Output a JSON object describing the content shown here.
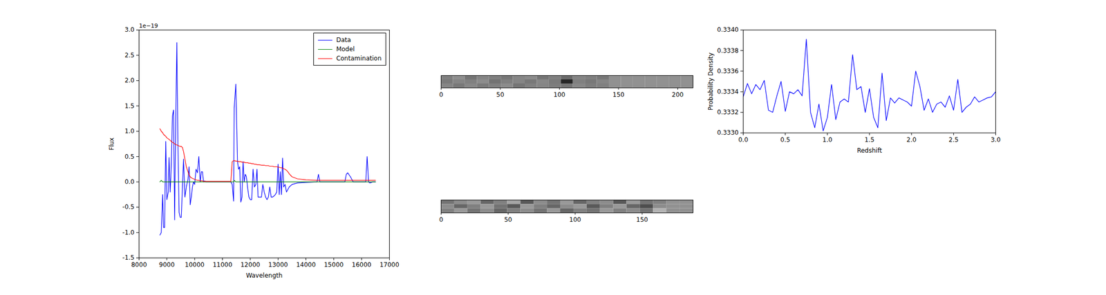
{
  "chart_data": [
    {
      "type": "line",
      "x_label": "Wavelength",
      "y_label": "Flux",
      "annotations": [
        "1e−19"
      ],
      "legend": "upper right",
      "grid": false,
      "xlim": [
        8000,
        17000
      ],
      "xticks": [
        8000,
        9000,
        10000,
        11000,
        12000,
        13000,
        14000,
        15000,
        16000,
        17000
      ],
      "ylim": [
        -1.5,
        3.0
      ],
      "yticks": [
        -1.5,
        {
          "value": -1,
          "label": "-1.0"
        },
        -0.5,
        {
          "value": 0,
          "label": "0.0"
        },
        0.5,
        {
          "value": 1,
          "label": "1.0"
        },
        1.5,
        {
          "value": 2,
          "label": "2.0"
        },
        2.5,
        {
          "value": 3,
          "label": "3.0"
        }
      ],
      "x": [
        8750,
        8800,
        8850,
        8880,
        8920,
        8960,
        9000,
        9050,
        9080,
        9120,
        9160,
        9200,
        9240,
        9280,
        9320,
        9360,
        9400,
        9440,
        9480,
        9520,
        9560,
        9600,
        9650,
        9700,
        9760,
        9800,
        9840,
        9880,
        9920,
        9960,
        10000,
        10050,
        10100,
        10150,
        10200,
        10240,
        10280,
        10320,
        10360,
        10400,
        10500,
        11000,
        11300,
        11350,
        11400,
        11420,
        11480,
        11540,
        11580,
        11620,
        11660,
        11700,
        11740,
        11780,
        11820,
        11860,
        11900,
        11950,
        12000,
        12050,
        12100,
        12150,
        12200,
        12240,
        12280,
        12320,
        12400,
        12450,
        12500,
        12550,
        12600,
        12650,
        12700,
        12750,
        12800,
        12850,
        12900,
        12950,
        13000,
        13040,
        13080,
        13120,
        13160,
        13200,
        13250,
        13300,
        13350,
        13400,
        13500,
        13700,
        14000,
        14400,
        14450,
        14500,
        15000,
        15400,
        15450,
        15500,
        15600,
        15700,
        16000,
        16150,
        16200,
        16250,
        16300,
        16400,
        16500
      ],
      "series": [
        {
          "name": "Data",
          "color": "#0000ff",
          "values": [
            -1.05,
            -1.0,
            -0.25,
            -0.9,
            -0.9,
            0.8,
            -0.35,
            -0.2,
            0.48,
            -0.2,
            0.3,
            1.3,
            1.42,
            -0.75,
            1.2,
            2.75,
            0.7,
            -0.6,
            -0.7,
            -0.7,
            -0.1,
            0.45,
            -0.3,
            -0.1,
            0.05,
            0.3,
            -0.45,
            -0.3,
            -0.1,
            0.0,
            -0.05,
            0.25,
            0.18,
            0.5,
            0.0,
            0.2,
            0.2,
            0.0,
            0.02,
            0.0,
            0.0,
            0.0,
            0.0,
            -0.05,
            -0.38,
            1.45,
            1.93,
            0.4,
            0.25,
            0.3,
            -0.4,
            -0.3,
            0.4,
            0.0,
            0.15,
            0.1,
            -0.1,
            -0.3,
            -0.35,
            -0.35,
            0.25,
            -0.1,
            -0.05,
            0.25,
            -0.3,
            -0.3,
            -0.3,
            -0.05,
            -0.2,
            -0.3,
            -0.35,
            -0.3,
            -0.1,
            -0.3,
            -0.3,
            -0.28,
            -0.25,
            -0.2,
            0.35,
            -0.25,
            0.2,
            -0.25,
            0.47,
            -0.1,
            -0.05,
            -0.2,
            -0.15,
            -0.1,
            -0.05,
            -0.02,
            -0.01,
            0.0,
            0.15,
            0.0,
            0.0,
            0.0,
            0.15,
            0.18,
            0.1,
            0.0,
            0.0,
            0.0,
            0.5,
            0.0,
            -0.02,
            0.0,
            0.0
          ]
        },
        {
          "name": "Model",
          "color": "#008000",
          "values": [
            0.0,
            0.03,
            0,
            0,
            0,
            0,
            0,
            0,
            0,
            0,
            0,
            0,
            0,
            0,
            0,
            0,
            0,
            0,
            0,
            0,
            0,
            0,
            0,
            0,
            0,
            0,
            0,
            0,
            0,
            0,
            0,
            0,
            0,
            0,
            0,
            0,
            0,
            0,
            0,
            0,
            0,
            0,
            0,
            0,
            0,
            0.03,
            0,
            0,
            0,
            0,
            0,
            0,
            0,
            0,
            0,
            0,
            0,
            0,
            0,
            0,
            0,
            0,
            0,
            0,
            0,
            0,
            0,
            0,
            0,
            0,
            0,
            0,
            0,
            0,
            0,
            0,
            0,
            0,
            0,
            0,
            0,
            0,
            0,
            0,
            0,
            0,
            0,
            0,
            0,
            0,
            0,
            0,
            0,
            0,
            0,
            0,
            0,
            0,
            0,
            0,
            0,
            0,
            0,
            0,
            0,
            0,
            0
          ]
        },
        {
          "name": "Contamination",
          "color": "#ff0000",
          "values": [
            1.05,
            1.0,
            0.97,
            0.94,
            0.92,
            0.9,
            0.87,
            0.85,
            0.84,
            0.82,
            0.8,
            0.78,
            0.77,
            0.75,
            0.74,
            0.73,
            0.72,
            0.71,
            0.7,
            0.7,
            0.68,
            0.6,
            0.45,
            0.3,
            0.2,
            0.14,
            0.1,
            0.08,
            0.07,
            0.06,
            0.05,
            0.04,
            0.03,
            0.03,
            0.02,
            0.02,
            0.02,
            0.01,
            0.01,
            0.01,
            0.01,
            0.01,
            0.01,
            0.4,
            0.42,
            0.42,
            0.41,
            0.41,
            0.4,
            0.4,
            0.4,
            0.39,
            0.39,
            0.39,
            0.38,
            0.38,
            0.38,
            0.37,
            0.37,
            0.36,
            0.36,
            0.35,
            0.35,
            0.34,
            0.34,
            0.34,
            0.33,
            0.33,
            0.33,
            0.32,
            0.32,
            0.32,
            0.31,
            0.31,
            0.31,
            0.3,
            0.3,
            0.3,
            0.29,
            0.29,
            0.28,
            0.28,
            0.27,
            0.26,
            0.25,
            0.23,
            0.2,
            0.16,
            0.1,
            0.06,
            0.04,
            0.03,
            0.03,
            0.03,
            0.03,
            0.03,
            0.03,
            0.03,
            0.03,
            0.03,
            0.03,
            0.03,
            0.03,
            0.03,
            0.03,
            0.03,
            0.03
          ]
        }
      ]
    },
    {
      "type": "heatmap",
      "tick_labels": "x",
      "xlim": [
        0,
        213
      ],
      "xticks": [
        0,
        50,
        100,
        150,
        200
      ],
      "ylim": [
        0,
        3
      ],
      "cells": [
        [
          0.5,
          0.56,
          0.46,
          0.52,
          0.5,
          0.47,
          0.53,
          0.55,
          0.46,
          0.5,
          0.42,
          0.52,
          0.5,
          0.47,
          0.57,
          0.57,
          0.57,
          0.57,
          0.57,
          0.57,
          0.57
        ],
        [
          0.48,
          0.52,
          0.5,
          0.55,
          0.45,
          0.5,
          0.52,
          0.47,
          0.53,
          0.48,
          0.15,
          0.5,
          0.47,
          0.52,
          0.57,
          0.57,
          0.57,
          0.57,
          0.57,
          0.57,
          0.57
        ],
        [
          0.52,
          0.47,
          0.53,
          0.48,
          0.5,
          0.55,
          0.46,
          0.5,
          0.52,
          0.49,
          0.45,
          0.53,
          0.49,
          0.5,
          0.57,
          0.57,
          0.57,
          0.57,
          0.57,
          0.57,
          0.57
        ]
      ]
    },
    {
      "type": "heatmap",
      "tick_labels": "x",
      "xlim": [
        0,
        188
      ],
      "xticks": [
        0,
        50,
        100,
        150
      ],
      "ylim": [
        0,
        3
      ],
      "cells": [
        [
          0.45,
          0.55,
          0.6,
          0.4,
          0.5,
          0.65,
          0.35,
          0.55,
          0.45,
          0.6,
          0.4,
          0.5,
          0.55,
          0.35,
          0.6,
          0.45,
          0.5,
          0.57,
          0.57
        ],
        [
          0.55,
          0.4,
          0.5,
          0.6,
          0.45,
          0.35,
          0.6,
          0.5,
          0.4,
          0.55,
          0.6,
          0.35,
          0.5,
          0.6,
          0.4,
          0.3,
          0.55,
          0.57,
          0.57
        ],
        [
          0.5,
          0.6,
          0.45,
          0.55,
          0.4,
          0.5,
          0.55,
          0.45,
          0.6,
          0.4,
          0.5,
          0.45,
          0.6,
          0.5,
          0.55,
          0.45,
          0.7,
          0.57,
          0.57
        ]
      ]
    },
    {
      "type": "line",
      "x_label": "Redshift",
      "y_label": "Probability Density",
      "grid": false,
      "xlim": [
        0,
        3
      ],
      "xticks": [
        {
          "value": 0,
          "label": "0.0"
        },
        0.5,
        {
          "value": 1,
          "label": "1.0"
        },
        1.5,
        {
          "value": 2,
          "label": "2.0"
        },
        2.5,
        {
          "value": 3,
          "label": "3.0"
        }
      ],
      "ylim": [
        0.333,
        0.334
      ],
      "yticks": [
        {
          "value": 0.333,
          "label": "0.3330"
        },
        0.3332,
        0.3334,
        0.3336,
        0.3338,
        {
          "value": 0.334,
          "label": "0.3340"
        }
      ],
      "x": [
        0,
        0.05,
        0.1,
        0.15,
        0.2,
        0.25,
        0.3,
        0.35,
        0.4,
        0.45,
        0.5,
        0.55,
        0.6,
        0.65,
        0.7,
        0.75,
        0.8,
        0.85,
        0.9,
        0.95,
        1,
        1.05,
        1.1,
        1.15,
        1.2,
        1.25,
        1.3,
        1.35,
        1.4,
        1.45,
        1.5,
        1.55,
        1.6,
        1.65,
        1.7,
        1.75,
        1.8,
        1.85,
        1.9,
        1.95,
        2,
        2.05,
        2.1,
        2.15,
        2.2,
        2.25,
        2.3,
        2.35,
        2.4,
        2.45,
        2.5,
        2.55,
        2.6,
        2.65,
        2.7,
        2.75,
        2.8,
        2.85,
        2.9,
        2.95,
        3
      ],
      "series": [
        {
          "color": "#0000ff",
          "values": [
            0.33335,
            0.33348,
            0.33338,
            0.33347,
            0.33342,
            0.33351,
            0.33322,
            0.3332,
            0.33336,
            0.3335,
            0.33321,
            0.3334,
            0.33338,
            0.33342,
            0.33336,
            0.33391,
            0.3332,
            0.33305,
            0.33328,
            0.33302,
            0.33315,
            0.33347,
            0.33313,
            0.3333,
            0.33333,
            0.3333,
            0.33376,
            0.33342,
            0.33345,
            0.3332,
            0.33343,
            0.33315,
            0.33305,
            0.33358,
            0.33312,
            0.33334,
            0.33329,
            0.33334,
            0.33332,
            0.3333,
            0.33326,
            0.3336,
            0.33345,
            0.33322,
            0.33333,
            0.3332,
            0.33328,
            0.3333,
            0.33325,
            0.33336,
            0.33322,
            0.33352,
            0.3332,
            0.33325,
            0.33328,
            0.33335,
            0.3333,
            0.33332,
            0.33334,
            0.33335,
            0.3334
          ]
        }
      ]
    }
  ]
}
